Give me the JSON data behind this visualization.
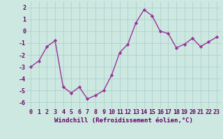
{
  "x": [
    0,
    1,
    2,
    3,
    4,
    5,
    6,
    7,
    8,
    9,
    10,
    11,
    12,
    13,
    14,
    15,
    16,
    17,
    18,
    19,
    20,
    21,
    22,
    23
  ],
  "y": [
    -3.0,
    -2.5,
    -1.3,
    -0.8,
    -4.7,
    -5.2,
    -4.7,
    -5.7,
    -5.4,
    -5.0,
    -3.7,
    -1.8,
    -1.1,
    0.7,
    1.8,
    1.3,
    0.0,
    -0.2,
    -1.4,
    -1.1,
    -0.6,
    -1.3,
    -0.9,
    -0.5
  ],
  "line_color": "#993399",
  "marker": "D",
  "marker_size": 2.2,
  "line_width": 1.0,
  "bg_color": "#cce8e0",
  "grid_color": "#aacccc",
  "xlabel": "Windchill (Refroidissement éolien,°C)",
  "xlabel_fontsize": 6.5,
  "tick_fontsize": 6.0,
  "ylim": [
    -6.5,
    2.5
  ],
  "yticks": [
    -6,
    -5,
    -4,
    -3,
    -2,
    -1,
    0,
    1,
    2
  ],
  "xticks": [
    0,
    1,
    2,
    3,
    4,
    5,
    6,
    7,
    8,
    9,
    10,
    11,
    12,
    13,
    14,
    15,
    16,
    17,
    18,
    19,
    20,
    21,
    22,
    23
  ]
}
